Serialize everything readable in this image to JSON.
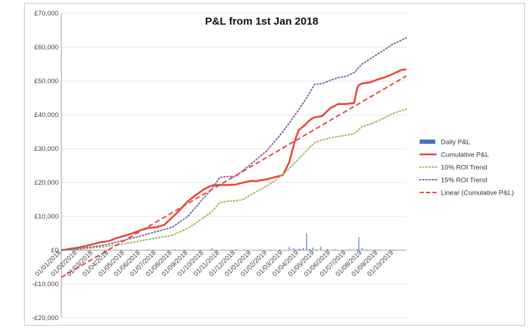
{
  "chart_data": {
    "type": "line",
    "title": "P&L from 1st Jan 2018",
    "xlabel": "",
    "ylabel": "",
    "ylim": [
      -20000,
      70000
    ],
    "yticks": [
      {
        "value": 70000,
        "label": "£70,000"
      },
      {
        "value": 60000,
        "label": "£60,000"
      },
      {
        "value": 50000,
        "label": "£50,000"
      },
      {
        "value": 40000,
        "label": "£40,000"
      },
      {
        "value": 30000,
        "label": "£30,000"
      },
      {
        "value": 20000,
        "label": "£20,000"
      },
      {
        "value": 10000,
        "label": "£10,000"
      },
      {
        "value": 0,
        "label": "£0"
      },
      {
        "value": -10000,
        "label": "-£10,000"
      },
      {
        "value": -20000,
        "label": "-£20,000"
      }
    ],
    "x_range": [
      0,
      21.8
    ],
    "x_categories": [
      "01/01/2018",
      "01/02/2018",
      "01/03/2018",
      "01/04/2018",
      "01/05/2018",
      "01/06/2018",
      "01/07/2018",
      "01/08/2018",
      "01/09/2018",
      "01/10/2018",
      "01/11/2018",
      "01/12/2018",
      "01/01/2019",
      "01/02/2019",
      "01/03/2019",
      "01/04/2019",
      "01/05/2019",
      "01/06/2019",
      "01/07/2019",
      "01/08/2019",
      "01/09/2019",
      "01/10/2019"
    ],
    "legend_position": "right",
    "series": [
      {
        "name": "Daily P&L",
        "style": "bar",
        "color": "#4472C4",
        "x": [
          1.0,
          3.0,
          5.5,
          7.2,
          9.5,
          11.0,
          12.5,
          13.8,
          14.4,
          14.7,
          15.0,
          15.1,
          15.3,
          15.5,
          15.7,
          15.9,
          16.1,
          16.4,
          16.8,
          17.3,
          18.2,
          18.7,
          18.8,
          19.0,
          19.3,
          20.0,
          21.0
        ],
        "values": [
          120,
          150,
          200,
          300,
          700,
          250,
          180,
          300,
          1000,
          600,
          450,
          400,
          700,
          5000,
          400,
          800,
          350,
          1100,
          400,
          300,
          300,
          400,
          3900,
          700,
          250,
          200,
          180
        ]
      },
      {
        "name": "Cumulative P&L",
        "style": "solid",
        "color": "#E8443A",
        "x": [
          0,
          0.5,
          1.0,
          1.5,
          2.0,
          2.5,
          3.0,
          3.5,
          4.0,
          4.5,
          5.0,
          5.5,
          6.0,
          6.5,
          7.0,
          7.3,
          7.6,
          8.0,
          8.5,
          9.0,
          9.5,
          9.7,
          10.0,
          10.5,
          11.0,
          11.5,
          12.0,
          12.3,
          13.0,
          13.5,
          14.0,
          14.4,
          14.8,
          15.0,
          15.4,
          15.6,
          15.8,
          16.0,
          16.3,
          16.5,
          17.0,
          17.5,
          18.0,
          18.5,
          18.7,
          18.8,
          19.0,
          19.5,
          20.0,
          20.5,
          21.0,
          21.5,
          21.8
        ],
        "values": [
          0,
          400,
          700,
          1200,
          1800,
          2400,
          2700,
          3600,
          4300,
          5000,
          5900,
          6600,
          6800,
          7500,
          9700,
          11000,
          12500,
          14500,
          16300,
          18000,
          19100,
          19300,
          19300,
          19300,
          19400,
          20000,
          20500,
          20400,
          21000,
          21600,
          22200,
          26000,
          33000,
          35500,
          37000,
          38000,
          38800,
          39300,
          39500,
          39700,
          42000,
          43200,
          43200,
          43500,
          48000,
          48800,
          49300,
          49600,
          50500,
          51200,
          52200,
          53300,
          53500
        ]
      },
      {
        "name": "10% ROI Trend",
        "style": "dotted",
        "color": "#9BBB59",
        "x": [
          0,
          1.0,
          2.0,
          3.0,
          4.0,
          5.0,
          6.0,
          7.0,
          8.0,
          8.5,
          9.0,
          9.5,
          10.0,
          10.5,
          11.0,
          11.5,
          12.0,
          13.0,
          14.0,
          15.0,
          16.0,
          16.5,
          17.0,
          18.0,
          18.5,
          19.0,
          19.5,
          20.0,
          20.5,
          21.0,
          21.8
        ],
        "values": [
          0,
          300,
          700,
          1200,
          1900,
          2800,
          3600,
          4400,
          6500,
          8000,
          9700,
          11300,
          14000,
          14500,
          14600,
          15000,
          16500,
          19000,
          22300,
          27000,
          31800,
          32600,
          33200,
          34000,
          34400,
          36500,
          37200,
          38200,
          39300,
          40500,
          41700
        ]
      },
      {
        "name": "15% ROI Trend",
        "style": "dotted",
        "color": "#8064A2",
        "x": [
          0,
          1.0,
          2.0,
          3.0,
          4.0,
          5.0,
          6.0,
          7.0,
          8.0,
          9.0,
          9.5,
          10.0,
          10.5,
          11.0,
          12.0,
          13.0,
          14.0,
          15.0,
          15.5,
          16.0,
          16.5,
          17.0,
          17.5,
          18.0,
          18.5,
          19.0,
          19.5,
          20.0,
          20.5,
          21.0,
          21.8
        ],
        "values": [
          0,
          450,
          1000,
          1800,
          3000,
          4200,
          5500,
          6800,
          10000,
          15500,
          18000,
          21500,
          21800,
          21800,
          25500,
          29500,
          35000,
          41500,
          45000,
          49000,
          49300,
          50200,
          51000,
          51400,
          52500,
          55000,
          56500,
          58000,
          59500,
          61000,
          62800
        ]
      },
      {
        "name": "Linear (Cumulative P&L)",
        "style": "dashed",
        "color": "#E8443A",
        "x": [
          0,
          21.8
        ],
        "values": [
          -8000,
          51500
        ]
      }
    ]
  }
}
